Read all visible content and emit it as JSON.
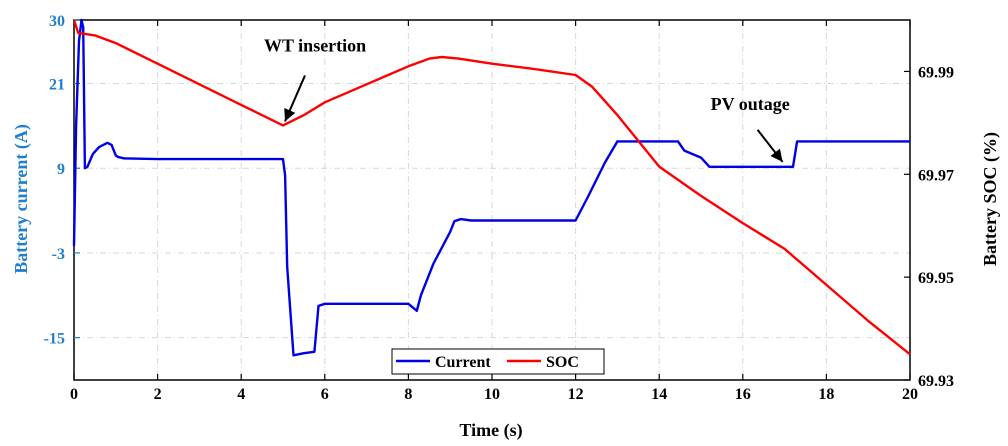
{
  "chart_data": {
    "type": "line",
    "xlabel": "Time (s)",
    "ylabel_left": "Battery current (A)",
    "ylabel_right": "Battery SOC (%)",
    "xlim": [
      0,
      20
    ],
    "ylim_left": [
      -21,
      30
    ],
    "ylim_right": [
      69.93,
      70.0
    ],
    "x_ticks": [
      0,
      2,
      4,
      6,
      8,
      10,
      12,
      14,
      16,
      18,
      20
    ],
    "y_left_ticks": [
      30,
      21,
      9,
      -3,
      -15
    ],
    "y_left_tick_labels": [
      "30",
      "21",
      "9",
      "-3",
      "-15"
    ],
    "y_right_ticks": [
      69.99,
      69.97,
      69.95,
      69.93
    ],
    "y_right_tick_labels": [
      "69.99",
      "69.97",
      "69.95",
      "69.93"
    ],
    "grid": true,
    "legend_position": "bottom-center",
    "colors": {
      "current": "#0000e6",
      "soc": "#ff0000",
      "left_axis": "#1f7fcf"
    },
    "series": [
      {
        "name": "Current",
        "axis": "left",
        "x": [
          0,
          0.05,
          0.12,
          0.18,
          0.22,
          0.26,
          0.32,
          0.45,
          0.6,
          0.8,
          0.9,
          1.0,
          1.05,
          1.2,
          2,
          3,
          4,
          5.0,
          5.05,
          5.1,
          5.25,
          5.5,
          5.75,
          5.85,
          6.0,
          7,
          7.5,
          8.0,
          8.2,
          8.3,
          8.6,
          9.0,
          9.1,
          9.25,
          9.5,
          10,
          11,
          12.0,
          12.3,
          12.7,
          13.0,
          14.0,
          14.45,
          14.6,
          15.0,
          15.2,
          16,
          17.0,
          17.2,
          17.3,
          18,
          20
        ],
        "values": [
          -2,
          15,
          27,
          30,
          29,
          9,
          9.2,
          11,
          12,
          12.6,
          12.3,
          10.8,
          10.6,
          10.4,
          10.3,
          10.3,
          10.3,
          10.3,
          8,
          -5,
          -17.5,
          -17.2,
          -17,
          -10.5,
          -10.2,
          -10.2,
          -10.2,
          -10.2,
          -11.2,
          -9,
          -4.5,
          0,
          1.5,
          1.8,
          1.6,
          1.6,
          1.6,
          1.6,
          5,
          9.8,
          12.8,
          12.8,
          12.8,
          11.5,
          10.5,
          9.2,
          9.2,
          9.2,
          9.2,
          12.8,
          12.8,
          12.8
        ]
      },
      {
        "name": "SOC",
        "axis": "right",
        "x": [
          0,
          0.1,
          0.5,
          1.0,
          2,
          3,
          4,
          5.0,
          5.5,
          6.0,
          7,
          8,
          8.5,
          8.8,
          9.2,
          10,
          11,
          12,
          12.4,
          13,
          14,
          15,
          16,
          17,
          18,
          19,
          20
        ],
        "values": [
          70.0,
          69.9975,
          69.997,
          69.9955,
          69.9915,
          69.9875,
          69.9835,
          69.9795,
          69.9815,
          69.984,
          69.9875,
          69.991,
          69.9925,
          69.9928,
          69.9925,
          69.9915,
          69.9905,
          69.9893,
          69.987,
          69.9815,
          69.9715,
          69.9658,
          69.9605,
          69.9555,
          69.9485,
          69.9415,
          69.935
        ]
      }
    ],
    "annotations": [
      {
        "text": "WT insertion",
        "x": 5.0,
        "y_right": 69.9795,
        "axis": "right"
      },
      {
        "text": "PV outage",
        "x": 17.0,
        "y_left": 9.2,
        "axis": "left"
      }
    ]
  }
}
